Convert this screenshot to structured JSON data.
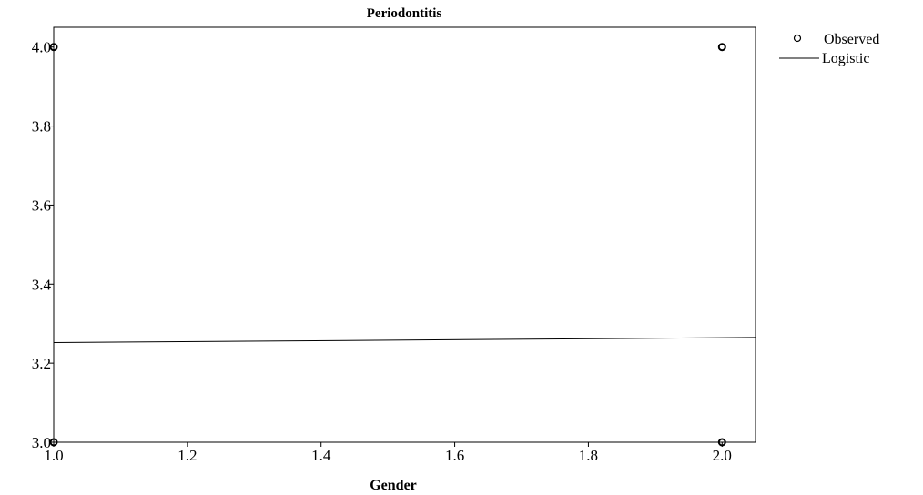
{
  "chart_data": {
    "type": "scatter",
    "title": "Periodontitis",
    "xlabel": "Gender",
    "ylabel": "",
    "xlim": [
      1.0,
      2.05
    ],
    "ylim": [
      3.0,
      4.05
    ],
    "x_ticks": [
      "1.0",
      "1.2",
      "1.4",
      "1.6",
      "1.8",
      "2.0"
    ],
    "x_tick_values": [
      1.0,
      1.2,
      1.4,
      1.6,
      1.8,
      2.0
    ],
    "y_ticks": [
      "3.0",
      "3.2",
      "3.4",
      "3.6",
      "3.8",
      "4.0"
    ],
    "y_tick_values": [
      3.0,
      3.2,
      3.4,
      3.6,
      3.8,
      4.0
    ],
    "legend": {
      "position": "right",
      "entries": [
        {
          "label": "Observed",
          "marker": "circle"
        },
        {
          "label": "Logistic",
          "marker": "line"
        }
      ]
    },
    "series": [
      {
        "name": "Observed",
        "kind": "points",
        "points": [
          {
            "x": 1.0,
            "y": 4.0
          },
          {
            "x": 1.0,
            "y": 3.0
          },
          {
            "x": 2.0,
            "y": 4.0
          },
          {
            "x": 2.0,
            "y": 3.0
          }
        ]
      },
      {
        "name": "Logistic",
        "kind": "line",
        "points": [
          {
            "x": 1.0,
            "y": 3.252
          },
          {
            "x": 2.05,
            "y": 3.265
          }
        ]
      }
    ],
    "grid": false,
    "colors": {
      "axis": "#000000",
      "marks": "#000000",
      "background": "#ffffff"
    }
  }
}
